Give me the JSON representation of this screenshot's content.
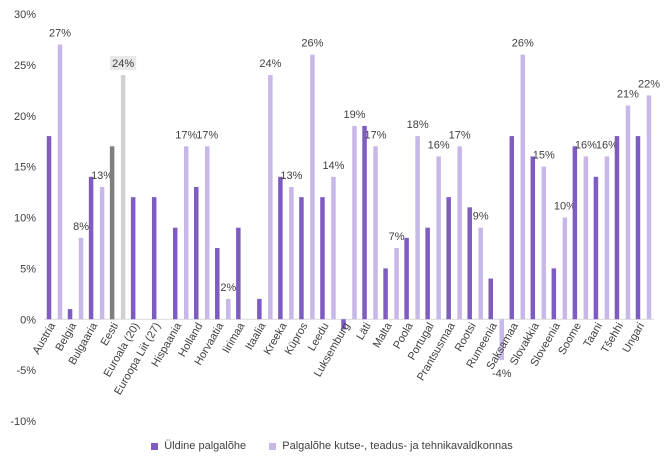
{
  "colors": {
    "series1": "#7e5cc2",
    "series2": "#c8b8e8",
    "highlight1": "#7f7f7f",
    "highlight2": "#d0d0d0",
    "highlight_label_bg": "#e8e8e8",
    "axis_text": "#404040",
    "gridline": "#d9d9d9"
  },
  "chart_data": {
    "type": "bar",
    "ylim": [
      -10,
      30
    ],
    "yticks": [
      -10,
      -5,
      0,
      5,
      10,
      15,
      20,
      25,
      30
    ],
    "ytick_labels": [
      "-10%",
      "-5%",
      "0%",
      "5%",
      "10%",
      "15%",
      "20%",
      "25%",
      "30%"
    ],
    "grid": false,
    "legend_position": "bottom",
    "highlight_category": "Eesti",
    "categories": [
      "Austria",
      "Belgia",
      "Bulgaaria",
      "Eesti",
      "Euroala (20)",
      "Euroopa Liit (27)",
      "Hispaania",
      "Holland",
      "Horvaatia",
      "Iirimaa",
      "Itaalia",
      "Kreeka",
      "Küpros",
      "Leedu",
      "Luksemburg",
      "Läti",
      "Malta",
      "Poola",
      "Portugal",
      "Prantsusmaa",
      "Rootsi",
      "Rumeenia",
      "Saksamaa",
      "Slovakkia",
      "Sloveenia",
      "Soome",
      "Taani",
      "Tšehhi",
      "Ungari"
    ],
    "series": [
      {
        "name": "Üldine palgalõhe",
        "values": [
          18,
          1,
          14,
          17,
          12,
          12,
          9,
          13,
          7,
          9,
          2,
          14,
          12,
          12,
          -1,
          19,
          5,
          8,
          9,
          12,
          11,
          4,
          18,
          16,
          5,
          17,
          14,
          18,
          18
        ]
      },
      {
        "name": "Palgalõhe kutse-, teadus- ja tehnikavaldkonnas",
        "values": [
          27,
          8,
          13,
          24,
          null,
          null,
          17,
          17,
          2,
          null,
          24,
          13,
          26,
          14,
          19,
          17,
          7,
          18,
          16,
          17,
          9,
          -4,
          26,
          15,
          10,
          16,
          16,
          21,
          22
        ]
      }
    ],
    "data_labels": [
      "27%",
      "8%",
      "13%",
      "24%",
      "",
      "",
      "17%",
      "17%",
      "2%",
      "",
      "24%",
      "13%",
      "26%",
      "14%",
      "19%",
      "17%",
      "7%",
      "18%",
      "16%",
      "17%",
      "9%",
      "-4%",
      "26%",
      "15%",
      "10%",
      "16%",
      "16%",
      "21%",
      "22%"
    ]
  }
}
